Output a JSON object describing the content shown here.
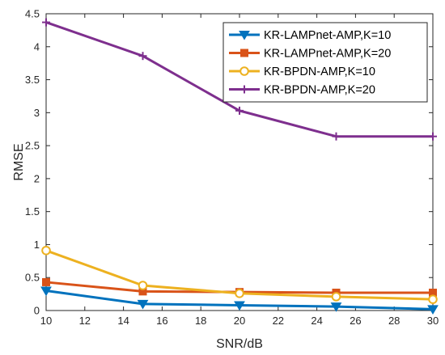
{
  "chart_data": {
    "type": "line",
    "title": "",
    "xlabel": "SNR/dB",
    "ylabel": "RMSE",
    "xlim": [
      10,
      30
    ],
    "ylim": [
      0,
      4.5
    ],
    "xticks": [
      10,
      12,
      14,
      16,
      18,
      20,
      22,
      24,
      26,
      28,
      30
    ],
    "yticks": [
      0,
      0.5,
      1,
      1.5,
      2,
      2.5,
      3,
      3.5,
      4,
      4.5
    ],
    "ytick_labels": [
      "0",
      "0.5",
      "1",
      "1.5",
      "2",
      "2.5",
      "3",
      "3.5",
      "4",
      "4.5"
    ],
    "grid": false,
    "legend_position": "top-right",
    "x": [
      10,
      15,
      20,
      25,
      30
    ],
    "series": [
      {
        "name": "KR-LAMPnet-AMP,K=10",
        "values": [
          0.3,
          0.1,
          0.08,
          0.06,
          0.02
        ],
        "color": "#0072BD",
        "marker": "triangle-down"
      },
      {
        "name": "KR-LAMPnet-AMP,K=20",
        "values": [
          0.43,
          0.29,
          0.28,
          0.27,
          0.27
        ],
        "color": "#D95319",
        "marker": "square"
      },
      {
        "name": "KR-BPDN-AMP,K=10",
        "values": [
          0.91,
          0.38,
          0.26,
          0.21,
          0.17
        ],
        "color": "#EDB120",
        "marker": "circle"
      },
      {
        "name": "KR-BPDN-AMP,K=20",
        "values": [
          4.37,
          3.86,
          3.03,
          2.64,
          2.64
        ],
        "color": "#7E2F8E",
        "marker": "plus"
      }
    ]
  }
}
